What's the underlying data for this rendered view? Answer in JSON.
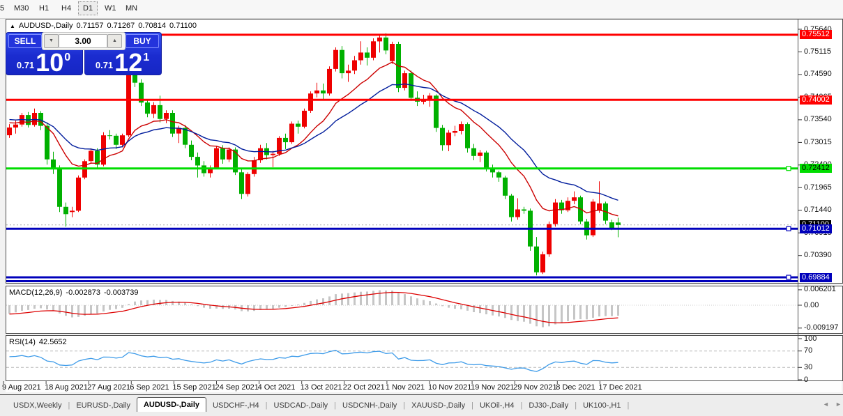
{
  "toolbar": {
    "periods": [
      "5",
      "M30",
      "H1",
      "H4",
      "D1",
      "W1",
      "MN"
    ],
    "active": "D1"
  },
  "window": {
    "collapse_icon": "▲",
    "title_symbol": "AUDUSD-,Daily",
    "ohlc": {
      "open": "0.71157",
      "high": "0.71267",
      "low": "0.70814",
      "close": "0.71100"
    }
  },
  "trade_panel": {
    "sell_label": "SELL",
    "buy_label": "BUY",
    "lot_value": "3.00",
    "spinner_down": "▼",
    "spinner_up": "▲",
    "sell_price": {
      "prefix": "0.71",
      "big": "10",
      "sup": "0"
    },
    "buy_price": {
      "prefix": "0.71",
      "big": "12",
      "sup": "1"
    }
  },
  "price_axis": {
    "ticks": [
      "0.75640",
      "0.75115",
      "0.74590",
      "0.74065",
      "0.73540",
      "0.73015",
      "0.72490",
      "0.71965",
      "0.71440",
      "0.70915",
      "0.70390"
    ],
    "chips": [
      {
        "value": "0.75512",
        "bg": "#ff0000",
        "fg": "#ffffff"
      },
      {
        "value": "0.74002",
        "bg": "#ff0000",
        "fg": "#ffffff"
      },
      {
        "value": "0.72412",
        "bg": "#00dd00",
        "fg": "#000000"
      },
      {
        "value": "0.71100",
        "bg": "#000000",
        "fg": "#ffffff"
      },
      {
        "value": "0.71012",
        "bg": "#0000bb",
        "fg": "#ffffff"
      },
      {
        "value": "0.69884",
        "bg": "#0000bb",
        "fg": "#ffffff"
      }
    ]
  },
  "hlines": [
    {
      "value": 0.75512,
      "color": "#ff0000",
      "width": 3,
      "handle": false
    },
    {
      "value": 0.74002,
      "color": "#ff0000",
      "width": 3,
      "handle": false
    },
    {
      "value": 0.72412,
      "color": "#00dd00",
      "width": 3,
      "handle": true
    },
    {
      "value": 0.71012,
      "color": "#0000bb",
      "width": 3,
      "handle": true
    },
    {
      "value": 0.69884,
      "color": "#0000bb",
      "width": 3,
      "handle": true
    },
    {
      "value": 0.69795,
      "color": "#0000bb",
      "width": 3,
      "handle": false
    }
  ],
  "bid_line": {
    "value": 0.711,
    "color": "#aaaaaa"
  },
  "chart_data": {
    "type": "candlestick",
    "symbol": "AUDUSD-",
    "timeframe": "Daily",
    "up_color": "#ee0000",
    "down_color": "#00b000",
    "price_range": {
      "top": 0.7564,
      "bottom": 0.69884
    },
    "last_bar": {
      "open": 0.71157,
      "high": 0.71267,
      "low": 0.70814,
      "close": 0.711
    },
    "moving_averages": [
      {
        "type": "ema",
        "period": 12,
        "color": "#cc0000"
      },
      {
        "type": "ema",
        "period": 24,
        "color": "#001c9c"
      }
    ],
    "candles": [
      [
        0.7318,
        0.7344,
        0.7312,
        0.7336
      ],
      [
        0.7336,
        0.7352,
        0.7322,
        0.7343
      ],
      [
        0.7343,
        0.737,
        0.7338,
        0.7365
      ],
      [
        0.7365,
        0.7372,
        0.7336,
        0.7342
      ],
      [
        0.7342,
        0.738,
        0.7338,
        0.737
      ],
      [
        0.737,
        0.7374,
        0.733,
        0.734
      ],
      [
        0.734,
        0.7348,
        0.725,
        0.7262
      ],
      [
        0.7262,
        0.728,
        0.7228,
        0.7243
      ],
      [
        0.7243,
        0.7248,
        0.714,
        0.7152
      ],
      [
        0.7152,
        0.7162,
        0.7106,
        0.7135
      ],
      [
        0.714,
        0.7152,
        0.7128,
        0.7143
      ],
      [
        0.7143,
        0.7225,
        0.714,
        0.722
      ],
      [
        0.722,
        0.7262,
        0.7216,
        0.7258
      ],
      [
        0.7258,
        0.7288,
        0.7252,
        0.7282
      ],
      [
        0.7282,
        0.7288,
        0.7242,
        0.725
      ],
      [
        0.725,
        0.7325,
        0.7246,
        0.7318
      ],
      [
        0.7318,
        0.733,
        0.7308,
        0.7317
      ],
      [
        0.7317,
        0.7322,
        0.7286,
        0.7296
      ],
      [
        0.7296,
        0.7322,
        0.729,
        0.7318
      ],
      [
        0.7318,
        0.7477,
        0.7314,
        0.7462
      ],
      [
        0.7462,
        0.7468,
        0.743,
        0.744
      ],
      [
        0.744,
        0.7448,
        0.7386,
        0.7394
      ],
      [
        0.7394,
        0.7402,
        0.736,
        0.7368
      ],
      [
        0.7368,
        0.7395,
        0.7358,
        0.7388
      ],
      [
        0.7388,
        0.741,
        0.7348,
        0.7356
      ],
      [
        0.7356,
        0.7376,
        0.7346,
        0.737
      ],
      [
        0.737,
        0.7376,
        0.7314,
        0.7322
      ],
      [
        0.7322,
        0.734,
        0.73,
        0.7335
      ],
      [
        0.7335,
        0.7342,
        0.7288,
        0.7296
      ],
      [
        0.7296,
        0.7306,
        0.726,
        0.7268
      ],
      [
        0.7268,
        0.7278,
        0.722,
        0.7248
      ],
      [
        0.7248,
        0.7258,
        0.7222,
        0.723
      ],
      [
        0.723,
        0.7248,
        0.722,
        0.7243
      ],
      [
        0.7243,
        0.7292,
        0.724,
        0.7288
      ],
      [
        0.7288,
        0.7295,
        0.7252,
        0.7262
      ],
      [
        0.7262,
        0.729,
        0.7256,
        0.7285
      ],
      [
        0.7285,
        0.729,
        0.7226,
        0.7232
      ],
      [
        0.7232,
        0.724,
        0.717,
        0.7182
      ],
      [
        0.7182,
        0.7232,
        0.7176,
        0.7228
      ],
      [
        0.7228,
        0.7268,
        0.7222,
        0.726
      ],
      [
        0.726,
        0.7296,
        0.7254,
        0.7288
      ],
      [
        0.7288,
        0.73,
        0.7262,
        0.7272
      ],
      [
        0.7272,
        0.7282,
        0.7244,
        0.7275
      ],
      [
        0.7275,
        0.7316,
        0.727,
        0.7312
      ],
      [
        0.7312,
        0.7322,
        0.7286,
        0.7302
      ],
      [
        0.7302,
        0.735,
        0.7298,
        0.7345
      ],
      [
        0.7345,
        0.7352,
        0.7322,
        0.7338
      ],
      [
        0.7338,
        0.738,
        0.7334,
        0.7375
      ],
      [
        0.7375,
        0.742,
        0.737,
        0.7415
      ],
      [
        0.7415,
        0.744,
        0.7406,
        0.7422
      ],
      [
        0.7422,
        0.7438,
        0.74,
        0.7415
      ],
      [
        0.7415,
        0.7478,
        0.741,
        0.7472
      ],
      [
        0.7472,
        0.7522,
        0.7466,
        0.7516
      ],
      [
        0.7516,
        0.7525,
        0.745,
        0.7462
      ],
      [
        0.7462,
        0.7482,
        0.7442,
        0.7468
      ],
      [
        0.7468,
        0.7502,
        0.746,
        0.7492
      ],
      [
        0.7492,
        0.7536,
        0.7482,
        0.751
      ],
      [
        0.751,
        0.7522,
        0.748,
        0.7498
      ],
      [
        0.7498,
        0.7543,
        0.7492,
        0.7536
      ],
      [
        0.7536,
        0.7552,
        0.751,
        0.7545
      ],
      [
        0.7545,
        0.7555,
        0.7506,
        0.7515
      ],
      [
        0.749,
        0.7535,
        0.7484,
        0.753
      ],
      [
        0.753,
        0.7535,
        0.7418,
        0.7428
      ],
      [
        0.7428,
        0.7468,
        0.7422,
        0.7462
      ],
      [
        0.7462,
        0.7468,
        0.7398,
        0.7405
      ],
      [
        0.7405,
        0.742,
        0.7386,
        0.7396
      ],
      [
        0.7396,
        0.7412,
        0.739,
        0.7399
      ],
      [
        0.7399,
        0.7416,
        0.7384,
        0.741
      ],
      [
        0.741,
        0.7413,
        0.7326,
        0.7335
      ],
      [
        0.7335,
        0.7342,
        0.7282,
        0.7295
      ],
      [
        0.7295,
        0.733,
        0.7281,
        0.7324
      ],
      [
        0.7324,
        0.734,
        0.7316,
        0.7328
      ],
      [
        0.7328,
        0.735,
        0.732,
        0.7344
      ],
      [
        0.7344,
        0.7348,
        0.7278,
        0.7288
      ],
      [
        0.7288,
        0.7298,
        0.726,
        0.727
      ],
      [
        0.727,
        0.7284,
        0.7256,
        0.7278
      ],
      [
        0.7278,
        0.7282,
        0.7234,
        0.7242
      ],
      [
        0.7242,
        0.725,
        0.722,
        0.7232
      ],
      [
        0.7232,
        0.7236,
        0.721,
        0.722
      ],
      [
        0.722,
        0.7224,
        0.717,
        0.7178
      ],
      [
        0.7178,
        0.7182,
        0.7118,
        0.7128
      ],
      [
        0.7128,
        0.7172,
        0.7122,
        0.7146
      ],
      [
        0.7146,
        0.7152,
        0.7136,
        0.7143
      ],
      [
        0.7143,
        0.7148,
        0.705,
        0.706
      ],
      [
        0.706,
        0.7082,
        0.6993,
        0.7
      ],
      [
        0.7,
        0.7048,
        0.6996,
        0.7042
      ],
      [
        0.7042,
        0.7118,
        0.7036,
        0.7112
      ],
      [
        0.7112,
        0.717,
        0.7106,
        0.7162
      ],
      [
        0.7162,
        0.7168,
        0.7136,
        0.7144
      ],
      [
        0.7144,
        0.7174,
        0.714,
        0.7166
      ],
      [
        0.7166,
        0.7188,
        0.7158,
        0.7174
      ],
      [
        0.7174,
        0.7178,
        0.7112,
        0.7118
      ],
      [
        0.7118,
        0.7124,
        0.7076,
        0.7086
      ],
      [
        0.7086,
        0.717,
        0.7082,
        0.7164
      ],
      [
        0.7144,
        0.7211,
        0.7138,
        0.716
      ],
      [
        0.716,
        0.7164,
        0.7112,
        0.712
      ],
      [
        0.7116,
        0.7122,
        0.7098,
        0.7102
      ],
      [
        0.71157,
        0.71267,
        0.70814,
        0.711
      ]
    ]
  },
  "macd": {
    "name": "MACD(12,26,9)",
    "value_main": "-0.002873",
    "value_signal": "-0.003739",
    "axis": [
      "0.006201",
      "0.00",
      "-0.009197"
    ],
    "histogram_color": "#c6c6c6",
    "signal_color": "#dd0000"
  },
  "rsi": {
    "name": "RSI(14)",
    "value": "42.5652",
    "axis": [
      "100",
      "70",
      "30",
      "0"
    ],
    "levels": [
      70,
      30
    ],
    "color": "#3d9be9"
  },
  "date_axis": {
    "labels": [
      "9 Aug 2021",
      "18 Aug 2021",
      "27 Aug 2021",
      "6 Sep 2021",
      "15 Sep 2021",
      "24 Sep 2021",
      "4 Oct 2021",
      "13 Oct 2021",
      "22 Oct 2021",
      "1 Nov 2021",
      "10 Nov 2021",
      "19 Nov 2021",
      "29 Nov 2021",
      "8 Dec 2021",
      "17 Dec 2021"
    ]
  },
  "tabs": {
    "items": [
      "USDX,Weekly",
      "EURUSD-,Daily",
      "AUDUSD-,Daily",
      "USDCHF-,H4",
      "USDCAD-,Daily",
      "USDCNH-,Daily",
      "XAUUSD-,Daily",
      "UKOil-,H4",
      "DJ30-,Daily",
      "UK100-,H1"
    ],
    "active_index": 2,
    "scroll_left": "◄",
    "scroll_right": "►"
  }
}
